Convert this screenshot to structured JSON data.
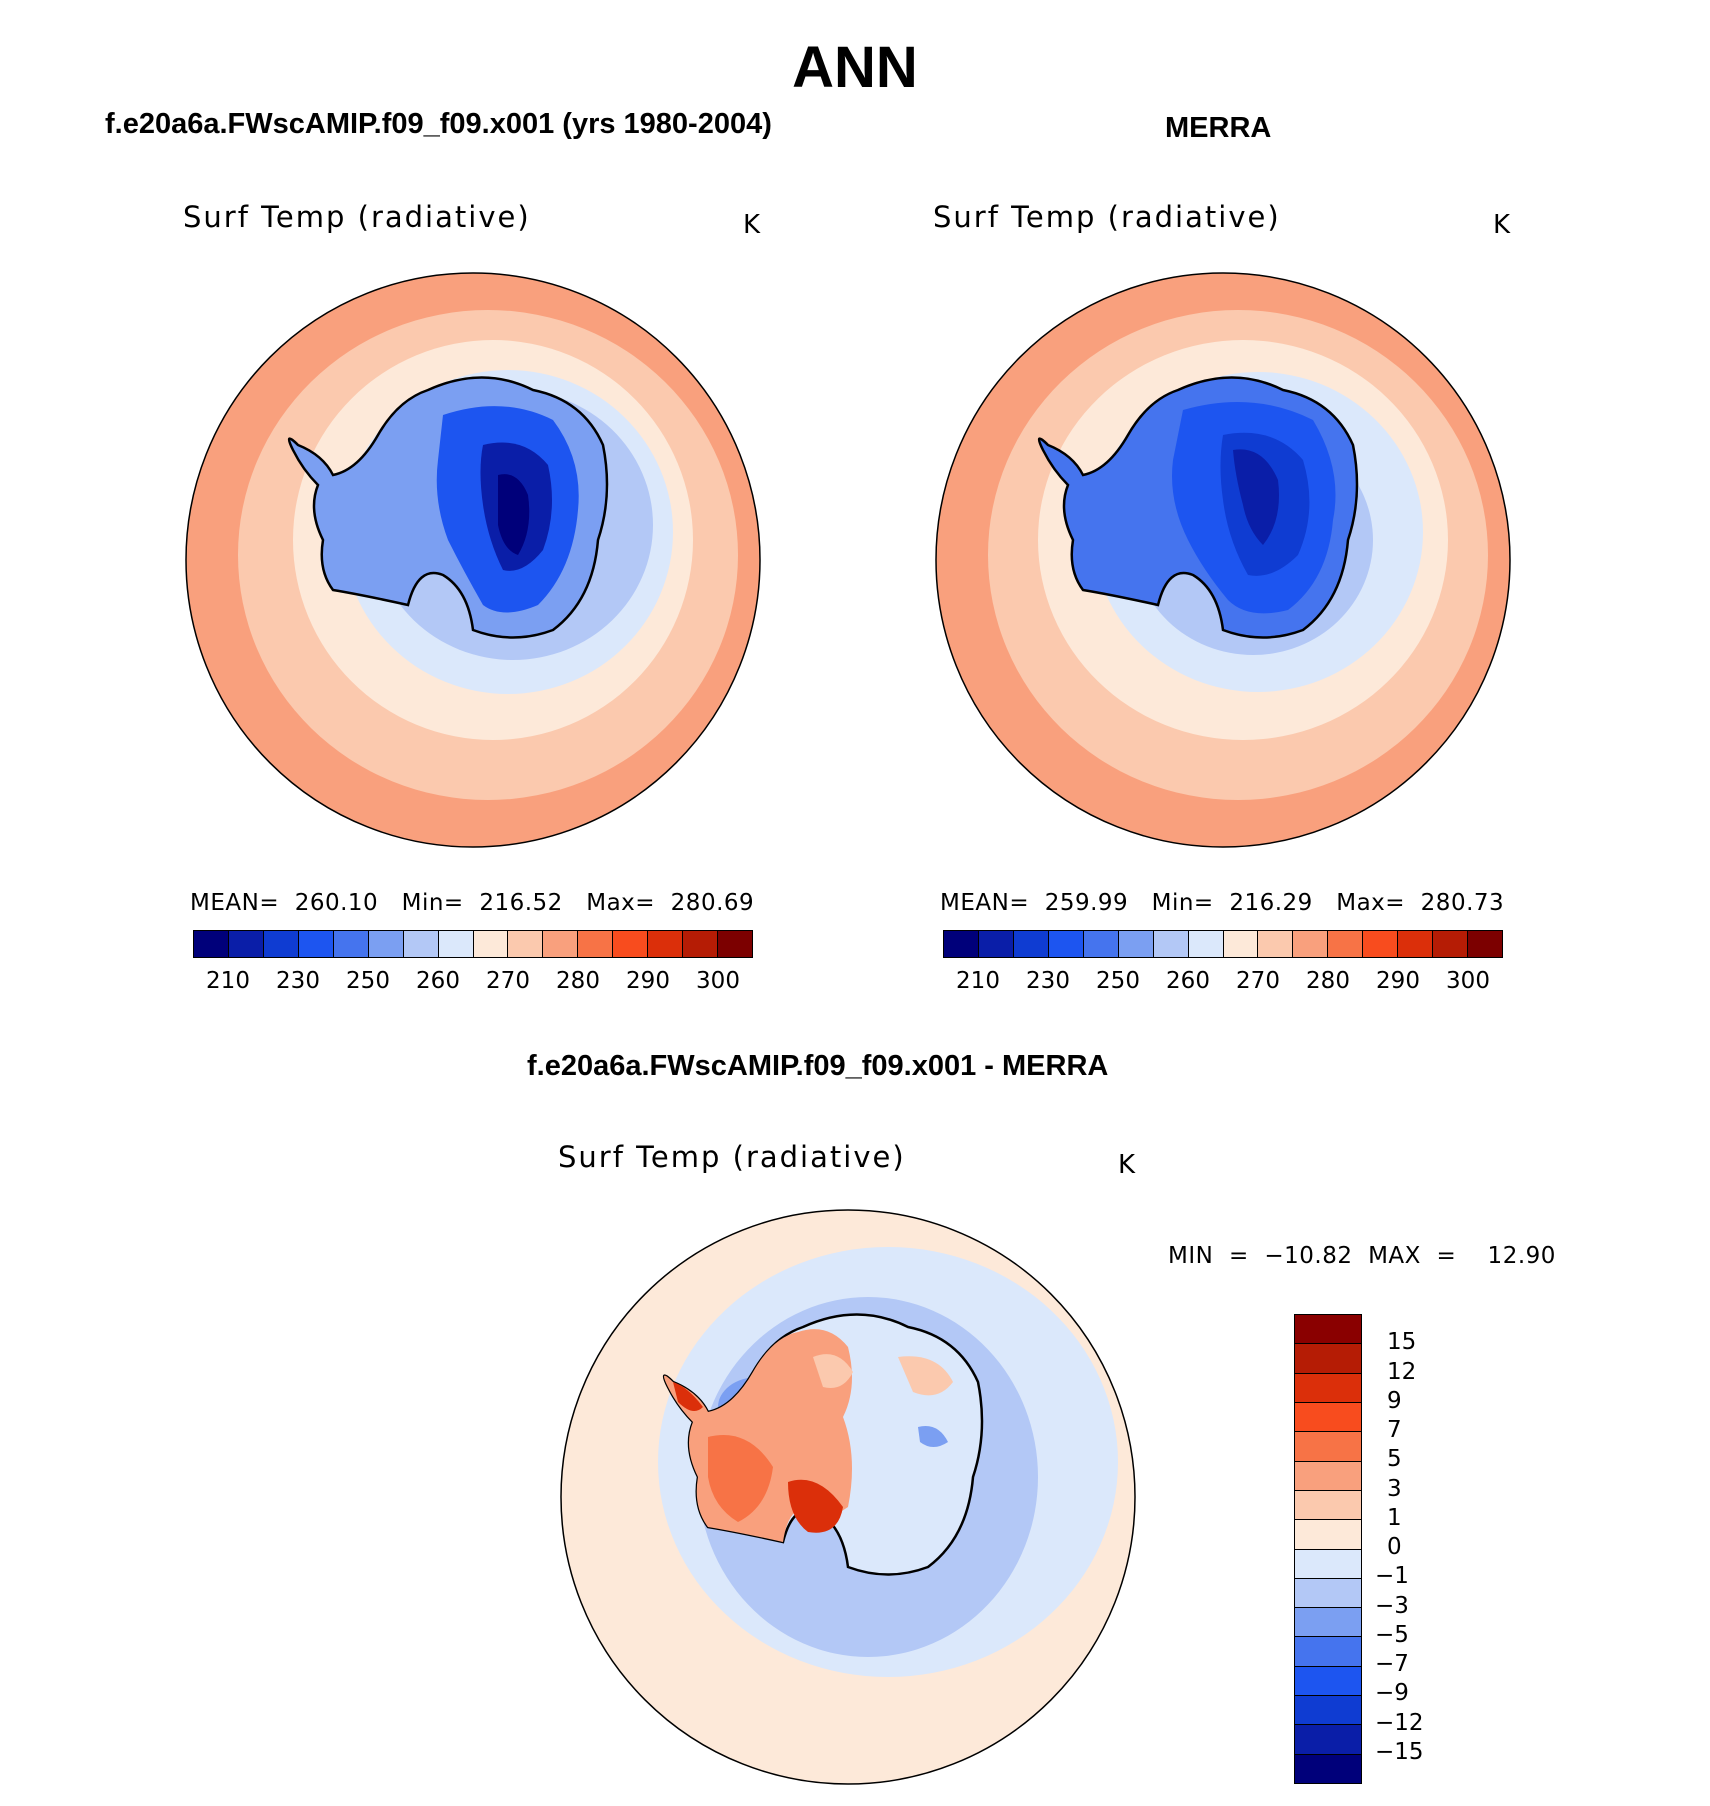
{
  "figure": {
    "title": "ANN"
  },
  "panels": [
    {
      "case_title": "f.e20a6a.FWscAMIP.f09_f09.x001 (yrs 1980-2004)",
      "var_title": "Surf Temp (radiative)",
      "units": "K",
      "stats": "MEAN=  260.10   Min=  216.52   Max=  280.69",
      "mean": 260.1,
      "min": 216.52,
      "max": 280.69
    },
    {
      "case_title": "MERRA",
      "var_title": "Surf Temp (radiative)",
      "units": "K",
      "stats": "MEAN=  259.99   Min=  216.29   Max=  280.73",
      "mean": 259.99,
      "min": 216.29,
      "max": 280.73
    },
    {
      "case_title": "f.e20a6a.FWscAMIP.f09_f09.x001 - MERRA",
      "var_title": "Surf Temp (radiative)",
      "units": "K",
      "stats": "MIN  =  −10.82  MAX  =    12.90",
      "min": -10.82,
      "max": 12.9
    }
  ],
  "colorbar_abs": {
    "ticks": [
      "210",
      "230",
      "250",
      "260",
      "270",
      "280",
      "290",
      "300"
    ],
    "colors": [
      "#00007a",
      "#0a1ea8",
      "#0f3cd2",
      "#1d55f0",
      "#4574ee",
      "#7b9ff2",
      "#b3c8f6",
      "#dbe8fb",
      "#fde9d9",
      "#fbc9ae",
      "#f9a07d",
      "#f77346",
      "#f84c1e",
      "#db2f0a",
      "#b51c05",
      "#7c0000"
    ]
  },
  "colorbar_diff": {
    "ticks": [
      "15",
      "12",
      "9",
      "7",
      "5",
      "3",
      "1",
      "0",
      "−1",
      "−3",
      "−5",
      "−7",
      "−9",
      "−12",
      "−15"
    ],
    "colors": [
      "#8a0000",
      "#b51c05",
      "#db2f0a",
      "#f84c1e",
      "#f77346",
      "#f9a07d",
      "#fbc9ae",
      "#fde9d9",
      "#dbe8fb",
      "#b3c8f6",
      "#7b9ff2",
      "#4574ee",
      "#1d55f0",
      "#0f3cd2",
      "#0a1ea8",
      "#00007a"
    ]
  }
}
